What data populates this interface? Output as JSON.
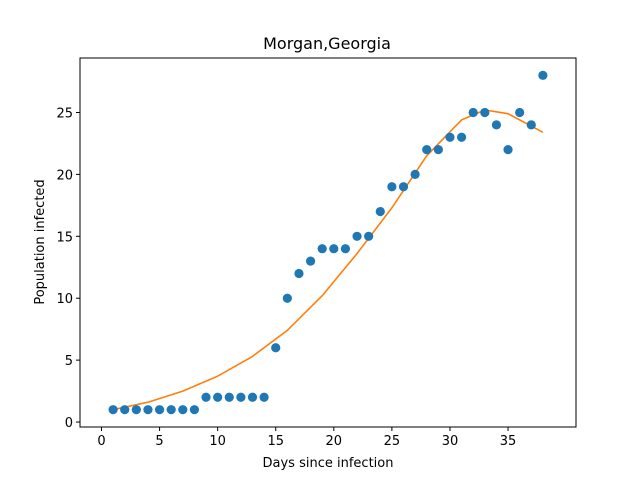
{
  "chart_data": {
    "type": "scatter",
    "title": "Morgan,Georgia",
    "xlabel": "Days since infection",
    "ylabel": "Population infected",
    "xlim": [
      -1.85,
      40.85
    ],
    "ylim": [
      -0.4,
      29.4
    ],
    "xticks": [
      0,
      5,
      10,
      15,
      20,
      25,
      30,
      35
    ],
    "yticks": [
      0,
      5,
      10,
      15,
      20,
      25
    ],
    "grid": false,
    "colors": {
      "points": "#1f77b4",
      "fit": "#ff7f0e",
      "axes": "#000000"
    },
    "series": [
      {
        "kind": "points",
        "x": [
          1,
          2,
          3,
          4,
          5,
          6,
          7,
          8,
          9,
          10,
          11,
          12,
          13,
          14,
          15,
          16,
          17,
          18,
          19,
          20,
          21,
          22,
          23,
          24,
          25,
          26,
          27,
          28,
          29,
          30,
          31,
          32,
          33,
          34,
          35,
          36,
          37,
          38
        ],
        "y": [
          1,
          1,
          1,
          1,
          1,
          1,
          1,
          1,
          2,
          2,
          2,
          2,
          2,
          2,
          6,
          10,
          12,
          13,
          14,
          14,
          14,
          15,
          15,
          17,
          19,
          19,
          20,
          22,
          22,
          23,
          23,
          25,
          25,
          24,
          22,
          25,
          24,
          28
        ]
      },
      {
        "kind": "fit-line",
        "x": [
          1,
          4,
          7,
          10,
          13,
          16,
          19,
          22,
          25,
          28,
          31,
          33,
          35,
          38
        ],
        "y": [
          1.0,
          1.6,
          2.5,
          3.7,
          5.3,
          7.4,
          10.2,
          13.6,
          17.3,
          21.5,
          24.4,
          25.2,
          24.9,
          23.4
        ]
      }
    ]
  }
}
